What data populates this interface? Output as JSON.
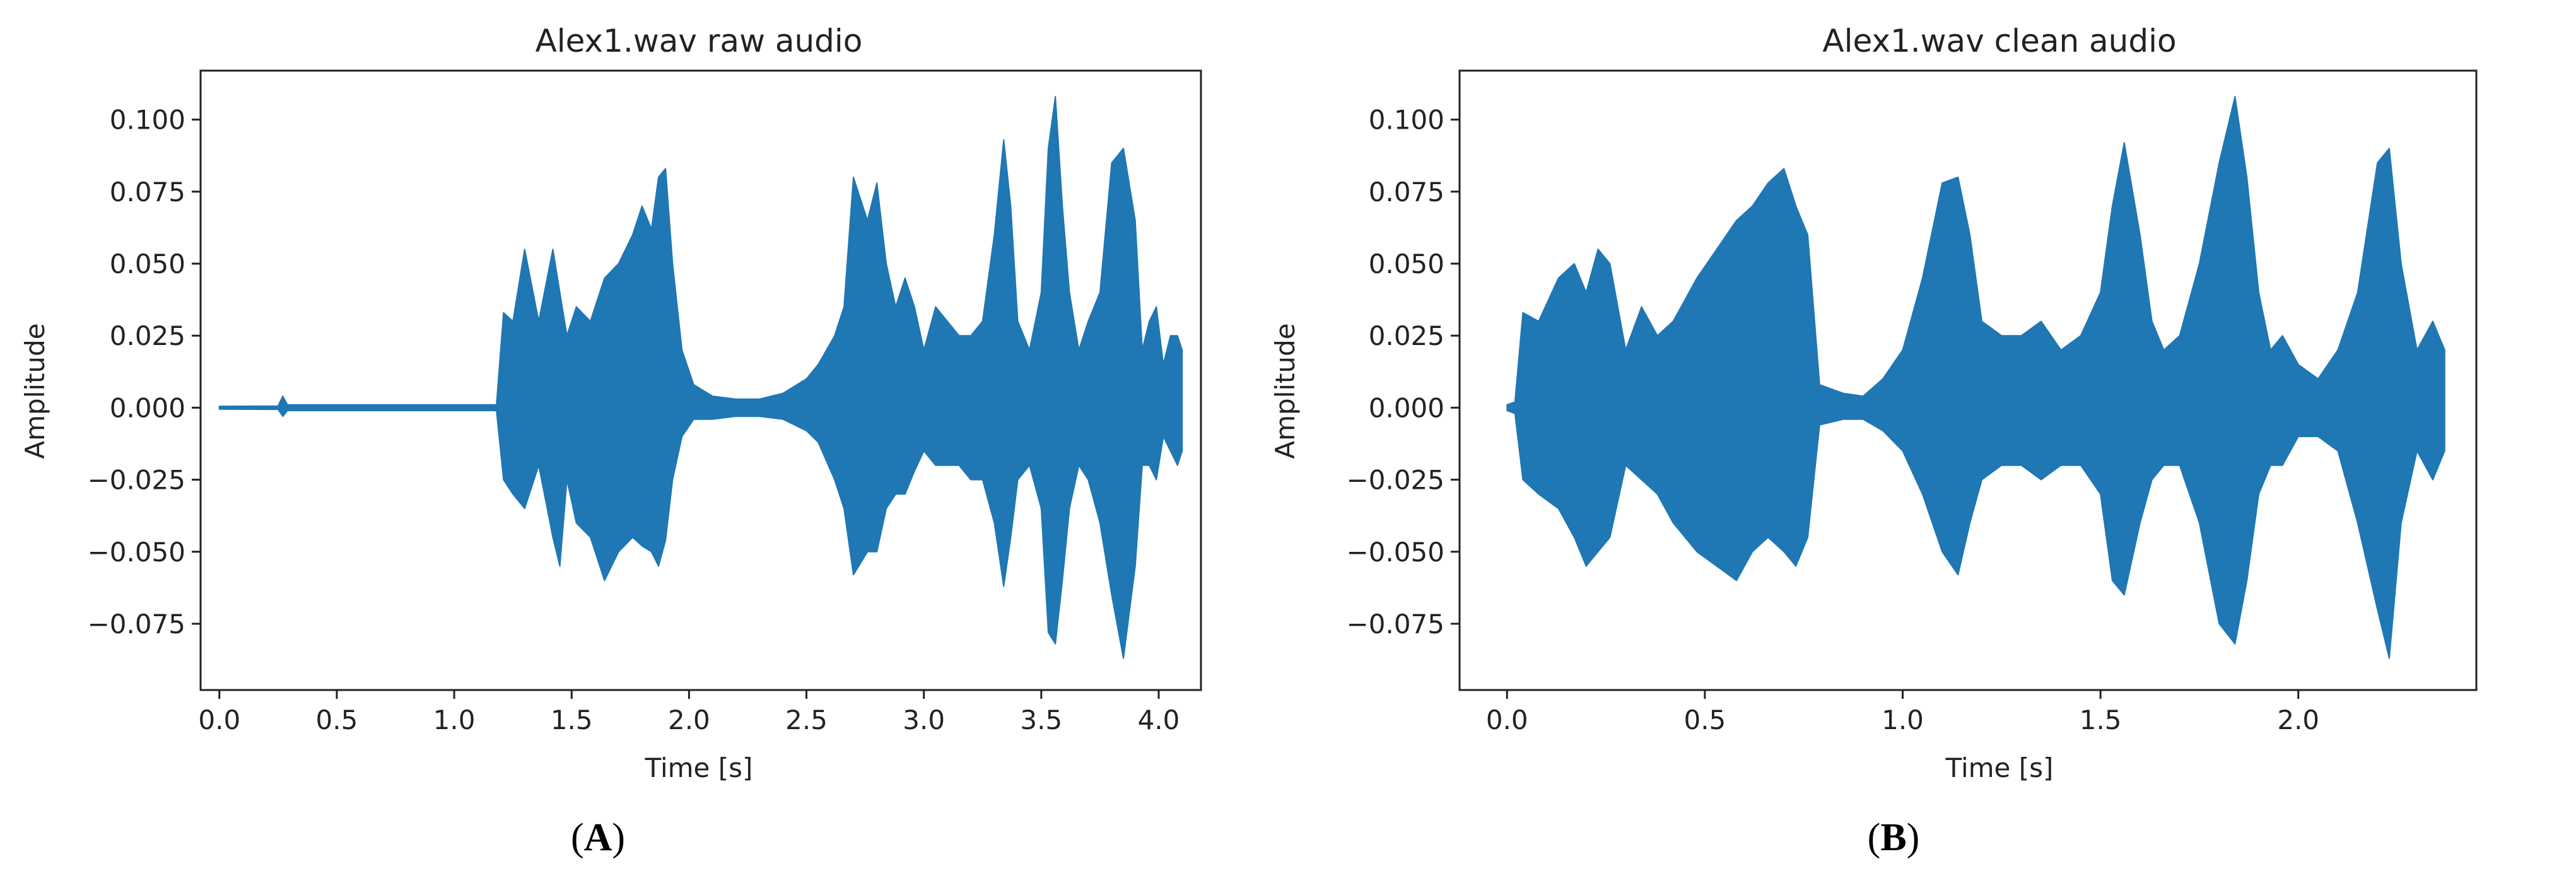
{
  "chart_data": [
    {
      "type": "line",
      "panel_label": [
        "(",
        "A",
        ")"
      ],
      "title": "Alex1.wav raw audio",
      "xlabel": "Time [s]",
      "ylabel": "Amplitude",
      "xlim": [
        -0.08,
        4.18
      ],
      "ylim": [
        -0.098,
        0.117
      ],
      "xticks": [
        0.0,
        0.5,
        1.0,
        1.5,
        2.0,
        2.5,
        3.0,
        3.5,
        4.0
      ],
      "xtick_labels": [
        "0.0",
        "0.5",
        "1.0",
        "1.5",
        "2.0",
        "2.5",
        "3.0",
        "3.5",
        "4.0"
      ],
      "yticks": [
        -0.075,
        -0.05,
        -0.025,
        0.0,
        0.025,
        0.05,
        0.075,
        0.1
      ],
      "ytick_labels": [
        "−0.075",
        "−0.050",
        "−0.025",
        "0.000",
        "0.025",
        "0.050",
        "0.075",
        "0.100"
      ],
      "color": "#1f77b4",
      "grid": false,
      "series": [
        {
          "x": [
            0.0,
            0.25,
            0.27,
            0.29,
            0.5,
            1.0,
            1.18,
            1.21,
            1.25,
            1.3,
            1.36,
            1.42,
            1.45,
            1.48,
            1.52,
            1.58,
            1.64,
            1.7,
            1.76,
            1.8,
            1.84,
            1.87,
            1.9,
            1.93,
            1.97,
            2.02,
            2.1,
            2.2,
            2.3,
            2.4,
            2.5,
            2.55,
            2.62,
            2.66,
            2.7,
            2.76,
            2.8,
            2.84,
            2.88,
            2.92,
            2.96,
            3.0,
            3.05,
            3.1,
            3.15,
            3.2,
            3.25,
            3.3,
            3.34,
            3.37,
            3.4,
            3.45,
            3.5,
            3.53,
            3.56,
            3.59,
            3.62,
            3.66,
            3.7,
            3.75,
            3.8,
            3.85,
            3.9,
            3.93,
            3.96,
            3.99,
            4.02,
            4.05,
            4.08,
            4.1
          ],
          "upper": [
            0.0005,
            0.0006,
            0.004,
            0.001,
            0.001,
            0.001,
            0.001,
            0.033,
            0.03,
            0.055,
            0.03,
            0.055,
            0.04,
            0.025,
            0.035,
            0.03,
            0.045,
            0.05,
            0.06,
            0.07,
            0.062,
            0.08,
            0.083,
            0.05,
            0.02,
            0.008,
            0.004,
            0.003,
            0.003,
            0.005,
            0.01,
            0.015,
            0.025,
            0.035,
            0.08,
            0.065,
            0.078,
            0.05,
            0.035,
            0.045,
            0.035,
            0.02,
            0.035,
            0.03,
            0.025,
            0.025,
            0.03,
            0.06,
            0.093,
            0.07,
            0.03,
            0.02,
            0.04,
            0.09,
            0.108,
            0.07,
            0.04,
            0.02,
            0.03,
            0.04,
            0.085,
            0.09,
            0.065,
            0.02,
            0.03,
            0.035,
            0.015,
            0.025,
            0.025,
            0.02
          ],
          "lower": [
            -0.0005,
            -0.0006,
            -0.003,
            -0.001,
            -0.001,
            -0.001,
            -0.001,
            -0.025,
            -0.03,
            -0.035,
            -0.02,
            -0.045,
            -0.055,
            -0.025,
            -0.04,
            -0.045,
            -0.06,
            -0.05,
            -0.045,
            -0.048,
            -0.05,
            -0.055,
            -0.046,
            -0.025,
            -0.01,
            -0.004,
            -0.004,
            -0.003,
            -0.003,
            -0.004,
            -0.008,
            -0.012,
            -0.025,
            -0.035,
            -0.058,
            -0.05,
            -0.05,
            -0.035,
            -0.03,
            -0.03,
            -0.022,
            -0.015,
            -0.02,
            -0.02,
            -0.02,
            -0.025,
            -0.025,
            -0.04,
            -0.062,
            -0.045,
            -0.025,
            -0.02,
            -0.035,
            -0.078,
            -0.082,
            -0.06,
            -0.035,
            -0.02,
            -0.025,
            -0.04,
            -0.065,
            -0.087,
            -0.055,
            -0.02,
            -0.02,
            -0.025,
            -0.01,
            -0.015,
            -0.02,
            -0.015
          ]
        }
      ]
    },
    {
      "type": "line",
      "panel_label": [
        "(",
        "B",
        ")"
      ],
      "title": "Alex1.wav clean audio",
      "xlabel": "Time [s]",
      "ylabel": "Amplitude",
      "xlim": [
        -0.12,
        2.45
      ],
      "ylim": [
        -0.098,
        0.117
      ],
      "xticks": [
        0.0,
        0.5,
        1.0,
        1.5,
        2.0
      ],
      "xtick_labels": [
        "0.0",
        "0.5",
        "1.0",
        "1.5",
        "2.0"
      ],
      "yticks": [
        -0.075,
        -0.05,
        -0.025,
        0.0,
        0.025,
        0.05,
        0.075,
        0.1
      ],
      "ytick_labels": [
        "−0.075",
        "−0.050",
        "−0.025",
        "0.000",
        "0.025",
        "0.050",
        "0.075",
        "0.100"
      ],
      "color": "#1f77b4",
      "grid": false,
      "series": [
        {
          "x": [
            0.0,
            0.02,
            0.04,
            0.08,
            0.13,
            0.17,
            0.2,
            0.23,
            0.26,
            0.3,
            0.34,
            0.38,
            0.42,
            0.48,
            0.53,
            0.58,
            0.62,
            0.66,
            0.7,
            0.73,
            0.76,
            0.79,
            0.85,
            0.9,
            0.95,
            1.0,
            1.05,
            1.1,
            1.14,
            1.17,
            1.2,
            1.25,
            1.3,
            1.35,
            1.4,
            1.45,
            1.5,
            1.53,
            1.56,
            1.6,
            1.63,
            1.66,
            1.7,
            1.75,
            1.8,
            1.84,
            1.87,
            1.9,
            1.93,
            1.96,
            2.0,
            2.05,
            2.1,
            2.15,
            2.2,
            2.23,
            2.26,
            2.3,
            2.34,
            2.37
          ],
          "upper": [
            0.001,
            0.002,
            0.033,
            0.03,
            0.045,
            0.05,
            0.04,
            0.055,
            0.05,
            0.02,
            0.035,
            0.025,
            0.03,
            0.045,
            0.055,
            0.065,
            0.07,
            0.078,
            0.083,
            0.07,
            0.06,
            0.008,
            0.005,
            0.004,
            0.01,
            0.02,
            0.045,
            0.078,
            0.08,
            0.06,
            0.03,
            0.025,
            0.025,
            0.03,
            0.02,
            0.025,
            0.04,
            0.07,
            0.092,
            0.06,
            0.03,
            0.02,
            0.025,
            0.05,
            0.085,
            0.108,
            0.08,
            0.04,
            0.02,
            0.025,
            0.015,
            0.01,
            0.02,
            0.04,
            0.085,
            0.09,
            0.05,
            0.02,
            0.03,
            0.02
          ],
          "upper_note": "",
          "lower": [
            -0.001,
            -0.002,
            -0.025,
            -0.03,
            -0.035,
            -0.045,
            -0.055,
            -0.05,
            -0.045,
            -0.02,
            -0.025,
            -0.03,
            -0.04,
            -0.05,
            -0.055,
            -0.06,
            -0.05,
            -0.045,
            -0.05,
            -0.055,
            -0.045,
            -0.006,
            -0.004,
            -0.004,
            -0.008,
            -0.015,
            -0.03,
            -0.05,
            -0.058,
            -0.04,
            -0.025,
            -0.02,
            -0.02,
            -0.025,
            -0.02,
            -0.02,
            -0.03,
            -0.06,
            -0.065,
            -0.04,
            -0.025,
            -0.02,
            -0.02,
            -0.04,
            -0.075,
            -0.082,
            -0.06,
            -0.03,
            -0.02,
            -0.02,
            -0.01,
            -0.01,
            -0.015,
            -0.04,
            -0.07,
            -0.087,
            -0.04,
            -0.015,
            -0.025,
            -0.015
          ]
        }
      ]
    }
  ]
}
